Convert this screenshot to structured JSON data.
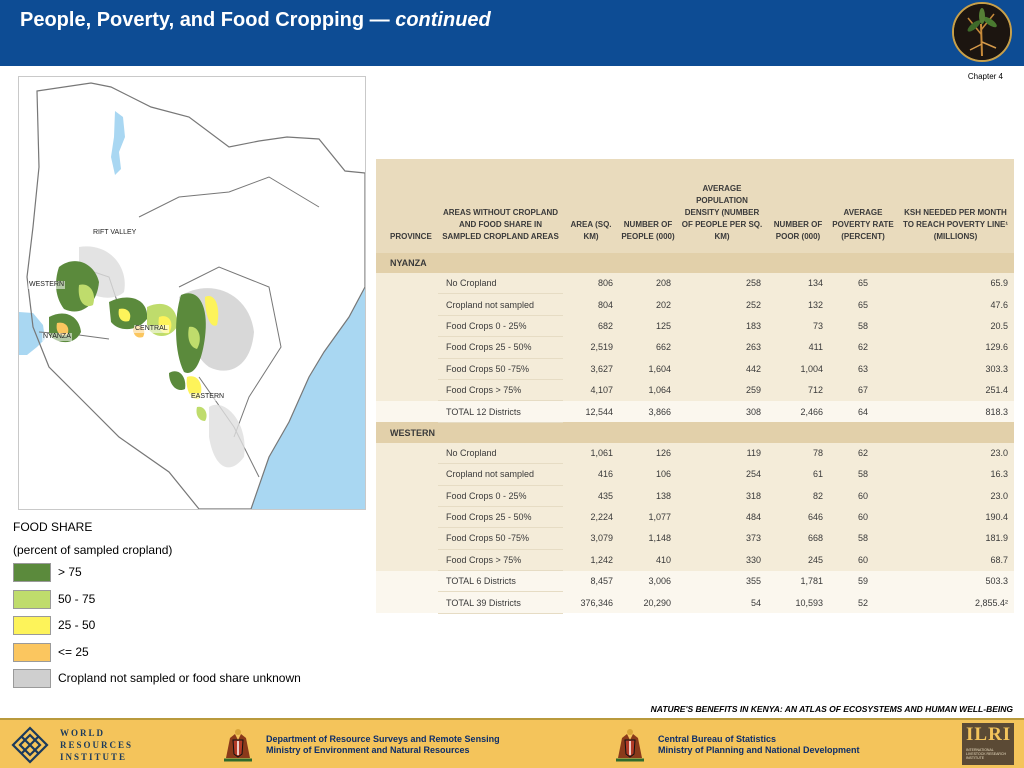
{
  "header": {
    "title_main": "People, Poverty, and Food Cropping — ",
    "title_italic": "continued",
    "logo_icon": "atlas-logo-icon"
  },
  "chapter": "Chapter 4",
  "map": {
    "labels": [
      "RIFT VALLEY",
      "WESTERN",
      "NYANZA",
      "CENTRAL",
      "EASTERN"
    ]
  },
  "legend": {
    "title": "FOOD SHARE",
    "subtitle": "(percent of sampled cropland)",
    "items": [
      {
        "label": "> 75",
        "color": "#5b8a3c"
      },
      {
        "label": "50 - 75",
        "color": "#bfdc6c"
      },
      {
        "label": "25 - 50",
        "color": "#fdf35a"
      },
      {
        "label": "<= 25",
        "color": "#fbc65f"
      },
      {
        "label": "Cropland not sampled or food share unknown",
        "color": "#cfcfcf"
      }
    ]
  },
  "table": {
    "headers": [
      "Province",
      "Areas without cropland and food share in sampled cropland areas",
      "Area (sq. km)",
      "Number of people (000)",
      "Average population density (number of people per sq. km)",
      "Number of poor (000)",
      "Average poverty rate (percent)",
      "KSh needed per month to reach poverty line¹ (millions)"
    ],
    "sections": [
      {
        "province": "NYANZA",
        "rows": [
          [
            "No Cropland",
            "806",
            "208",
            "258",
            "134",
            "65",
            "65.9"
          ],
          [
            "Cropland not sampled",
            "804",
            "202",
            "252",
            "132",
            "65",
            "47.6"
          ],
          [
            "Food Crops 0 - 25%",
            "682",
            "125",
            "183",
            "73",
            "58",
            "20.5"
          ],
          [
            "Food Crops 25 - 50%",
            "2,519",
            "662",
            "263",
            "411",
            "62",
            "129.6"
          ],
          [
            "Food Crops 50 -75%",
            "3,627",
            "1,604",
            "442",
            "1,004",
            "63",
            "303.3"
          ],
          [
            "Food Crops > 75%",
            "4,107",
            "1,064",
            "259",
            "712",
            "67",
            "251.4"
          ],
          [
            "TOTAL 12 Districts",
            "12,544",
            "3,866",
            "308",
            "2,466",
            "64",
            "818.3"
          ]
        ]
      },
      {
        "province": "WESTERN",
        "rows": [
          [
            "No Cropland",
            "1,061",
            "126",
            "119",
            "78",
            "62",
            "23.0"
          ],
          [
            "Cropland not sampled",
            "416",
            "106",
            "254",
            "61",
            "58",
            "16.3"
          ],
          [
            "Food Crops 0 - 25%",
            "435",
            "138",
            "318",
            "82",
            "60",
            "23.0"
          ],
          [
            "Food Crops 25 - 50%",
            "2,224",
            "1,077",
            "484",
            "646",
            "60",
            "190.4"
          ],
          [
            "Food Crops 50 -75%",
            "3,079",
            "1,148",
            "373",
            "668",
            "58",
            "181.9"
          ],
          [
            "Food Crops > 75%",
            "1,242",
            "410",
            "330",
            "245",
            "60",
            "68.7"
          ],
          [
            "TOTAL 6 Districts",
            "8,457",
            "3,006",
            "355",
            "1,781",
            "59",
            "503.3"
          ]
        ]
      }
    ],
    "grand_total": [
      "TOTAL 39 Districts",
      "376,346",
      "20,290",
      "54",
      "10,593",
      "52",
      "2,855.4²"
    ]
  },
  "footer": {
    "atlas_title": "NATURE'S BENEFITS IN KENYA: AN ATLAS OF ECOSYSTEMS AND HUMAN WELL-BEING",
    "wri_lines": [
      "WORLD",
      "RESOURCES",
      "INSTITUTE"
    ],
    "dept1_line1": "Department of Resource Surveys and Remote Sensing",
    "dept1_line2": "Ministry of Environment and Natural Resources",
    "dept2_line1": "Central Bureau of Statistics",
    "dept2_line2": "Ministry of Planning and National Development",
    "ilri_name": "ILRI",
    "ilri_sub": "INTERNATIONAL LIVESTOCK RESEARCH INSTITUTE"
  }
}
